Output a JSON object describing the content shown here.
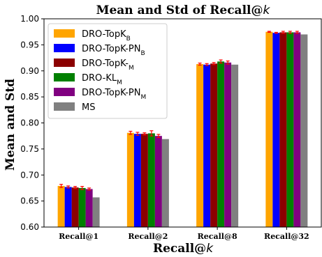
{
  "chart_data": {
    "type": "bar",
    "title": "Mean and Std of Recall@k",
    "xlabel": "Recall@k",
    "ylabel": "Mean and Std",
    "ylim": [
      0.6,
      1.0
    ],
    "yticks": [
      "0.60",
      "0.65",
      "0.70",
      "0.75",
      "0.80",
      "0.85",
      "0.90",
      "0.95",
      "1.00"
    ],
    "categories": [
      "Recall@1",
      "Recall@2",
      "Recall@8",
      "Recall@32"
    ],
    "legend_position": "top-left",
    "grid": false,
    "series": [
      {
        "name": "DRO-TopK",
        "sub": "B",
        "color": "#ffa500",
        "values": [
          0.679,
          0.781,
          0.913,
          0.975
        ],
        "errors": [
          0.003,
          0.003,
          0.002,
          0.001
        ]
      },
      {
        "name": "DRO-TopK-PN",
        "sub": "B",
        "color": "#0000ff",
        "values": [
          0.677,
          0.779,
          0.912,
          0.973
        ],
        "errors": [
          0.002,
          0.003,
          0.002,
          0.001
        ]
      },
      {
        "name": "DRO-TopK-",
        "sub": "M",
        "color": "#8b0000",
        "values": [
          0.676,
          0.779,
          0.914,
          0.974
        ],
        "errors": [
          0.002,
          0.002,
          0.002,
          0.002
        ]
      },
      {
        "name": "DRO-KL",
        "sub": "M",
        "color": "#008000",
        "values": [
          0.675,
          0.78,
          0.918,
          0.974
        ],
        "errors": [
          0.003,
          0.005,
          0.003,
          0.002
        ]
      },
      {
        "name": "DRO-TopK-PN",
        "sub": "M",
        "color": "#800080",
        "values": [
          0.673,
          0.775,
          0.916,
          0.974
        ],
        "errors": [
          0.002,
          0.003,
          0.003,
          0.002
        ]
      },
      {
        "name": "MS",
        "sub": "",
        "color": "#808080",
        "values": [
          0.657,
          0.769,
          0.912,
          0.97
        ],
        "errors": [
          0,
          0,
          0,
          0
        ]
      }
    ]
  }
}
